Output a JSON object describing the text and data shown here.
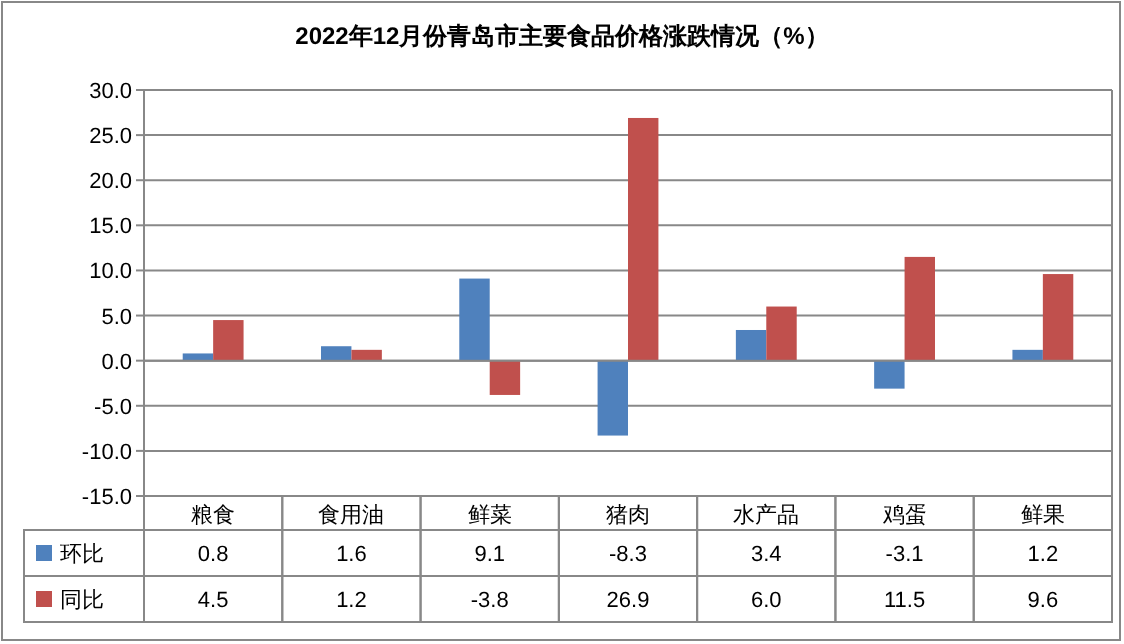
{
  "chart_data": {
    "type": "bar",
    "title": "2022年12月份青岛市主要食品价格涨跌情况（%）",
    "categories": [
      "粮食",
      "食用油",
      "鲜菜",
      "猪肉",
      "水产品",
      "鸡蛋",
      "鲜果"
    ],
    "series": [
      {
        "name": "环比",
        "color": "#4f81bd",
        "values": [
          0.8,
          1.6,
          9.1,
          -8.3,
          3.4,
          -3.1,
          1.2
        ],
        "value_labels": [
          "0.8",
          "1.6",
          "9.1",
          "-8.3",
          "3.4",
          "-3.1",
          "1.2"
        ]
      },
      {
        "name": "同比",
        "color": "#c0504d",
        "values": [
          4.5,
          1.2,
          -3.8,
          26.9,
          6.0,
          11.5,
          9.6
        ],
        "value_labels": [
          "4.5",
          "1.2",
          "-3.8",
          "26.9",
          "6.0",
          "11.5",
          "9.6"
        ]
      }
    ],
    "ylim": [
      -15,
      30
    ],
    "yticks": [
      {
        "value": -15,
        "label": "-15.0"
      },
      {
        "value": -10,
        "label": "-10.0"
      },
      {
        "value": -5,
        "label": "-5.0"
      },
      {
        "value": 0,
        "label": "0.0"
      },
      {
        "value": 5,
        "label": "5.0"
      },
      {
        "value": 10,
        "label": "10.0"
      },
      {
        "value": 15,
        "label": "15.0"
      },
      {
        "value": 20,
        "label": "20.0"
      },
      {
        "value": 25,
        "label": "25.0"
      },
      {
        "value": 30,
        "label": "30.0"
      }
    ],
    "grid": "y",
    "legend": "bottom"
  }
}
